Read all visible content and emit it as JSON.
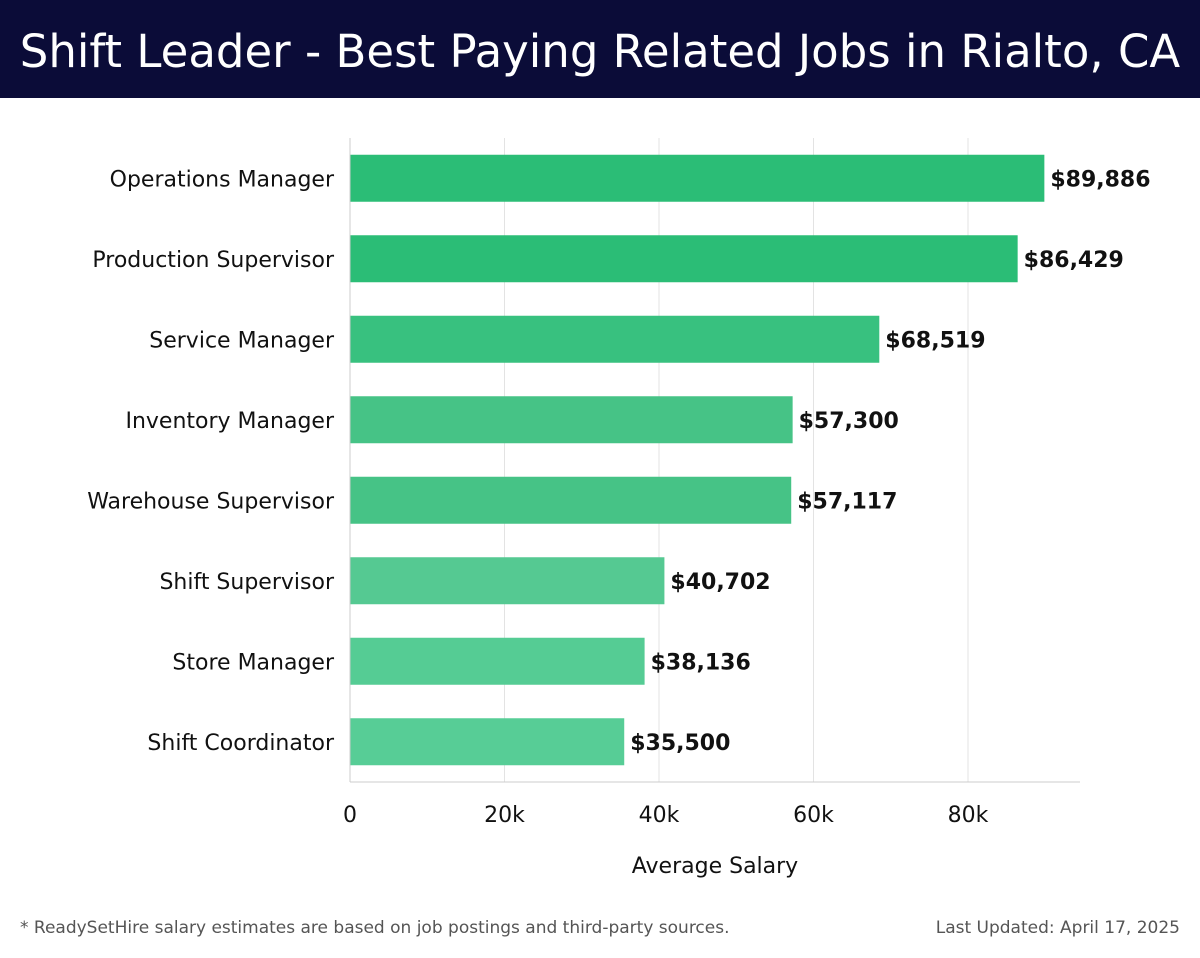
{
  "header": {
    "title": "Shift Leader - Best Paying Related Jobs in Rialto, CA"
  },
  "colors": {
    "header_bg": "#0b0c38",
    "bar_palette": [
      "#2bbd76",
      "#2bbd76",
      "#38c17f",
      "#46c386",
      "#46c386",
      "#55c992",
      "#55cc94",
      "#57cd96"
    ],
    "grid": "#e3e3e3",
    "axis": "#cccccc"
  },
  "chart_data": {
    "type": "bar",
    "orientation": "horizontal",
    "categories": [
      "Operations Manager",
      "Production Supervisor",
      "Service Manager",
      "Inventory Manager",
      "Warehouse Supervisor",
      "Shift Supervisor",
      "Store Manager",
      "Shift Coordinator"
    ],
    "values": [
      89886,
      86429,
      68519,
      57300,
      57117,
      40702,
      38136,
      35500
    ],
    "value_labels": [
      "$89,886",
      "$86,429",
      "$68,519",
      "$57,300",
      "$57,117",
      "$40,702",
      "$38,136",
      "$35,500"
    ],
    "xlabel": "Average Salary",
    "xlim": [
      0,
      94500
    ],
    "xticks": [
      0,
      20000,
      40000,
      60000,
      80000
    ],
    "xtick_labels": [
      "0",
      "20k",
      "40k",
      "60k",
      "80k"
    ],
    "grid": true,
    "legend": false
  },
  "footer": {
    "note": "* ReadySetHire salary estimates are based on job postings and third-party sources.",
    "updated": "Last Updated: April 17, 2025"
  }
}
